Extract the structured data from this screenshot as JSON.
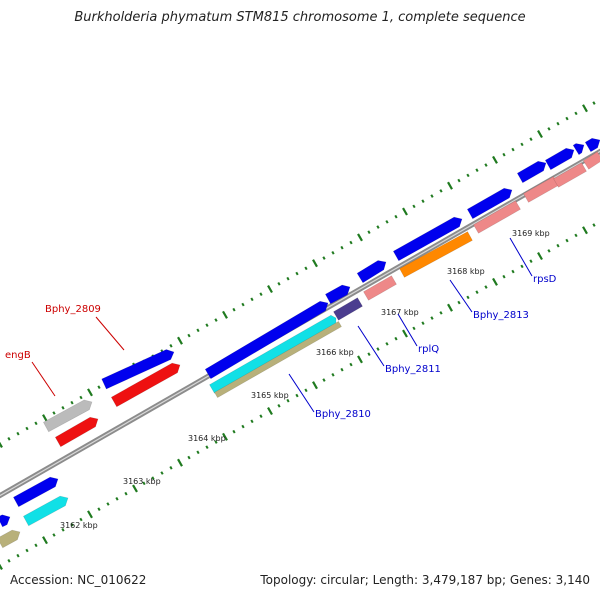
{
  "title": "Burkholderia phymatum STM815 chromosome 1, complete sequence",
  "footer": {
    "accession": "Accession: NC_010622",
    "summary": "Topology: circular; Length: 3,479,187 bp; Genes: 3,140"
  },
  "colors": {
    "backbone": "#8c8c8c",
    "tick": "#1f7a1f",
    "forward_cds": "#0000ee",
    "red_cds": "#ee1111",
    "gray_cds": "#bbbbbb",
    "cyan_cds": "#11e0e6",
    "khaki_cds": "#b8b07a",
    "salmon_cds": "#ee8888",
    "orange_cds": "#ff8800",
    "purple_cds": "#4b3d8f",
    "blue_label": "#0000cc",
    "red_label": "#cc0000"
  },
  "ruler": {
    "kbp_labels": [
      "3162 kbp",
      "3163 kbp",
      "3164 kbp",
      "3165 kbp",
      "3166 kbp",
      "3167 kbp",
      "3168 kbp",
      "3169 kbp"
    ]
  },
  "gene_labels": [
    {
      "id": "Bphy_2809",
      "text": "Bphy_2809",
      "color": "red"
    },
    {
      "id": "engB",
      "text": "engB",
      "color": "red"
    },
    {
      "id": "Bphy_2810",
      "text": "Bphy_2810",
      "color": "blue"
    },
    {
      "id": "Bphy_2811",
      "text": "Bphy_2811",
      "color": "blue"
    },
    {
      "id": "rplQ",
      "text": "rplQ",
      "color": "blue"
    },
    {
      "id": "Bphy_2813",
      "text": "Bphy_2813",
      "color": "blue"
    },
    {
      "id": "rpsD",
      "text": "rpsD",
      "color": "blue"
    }
  ]
}
